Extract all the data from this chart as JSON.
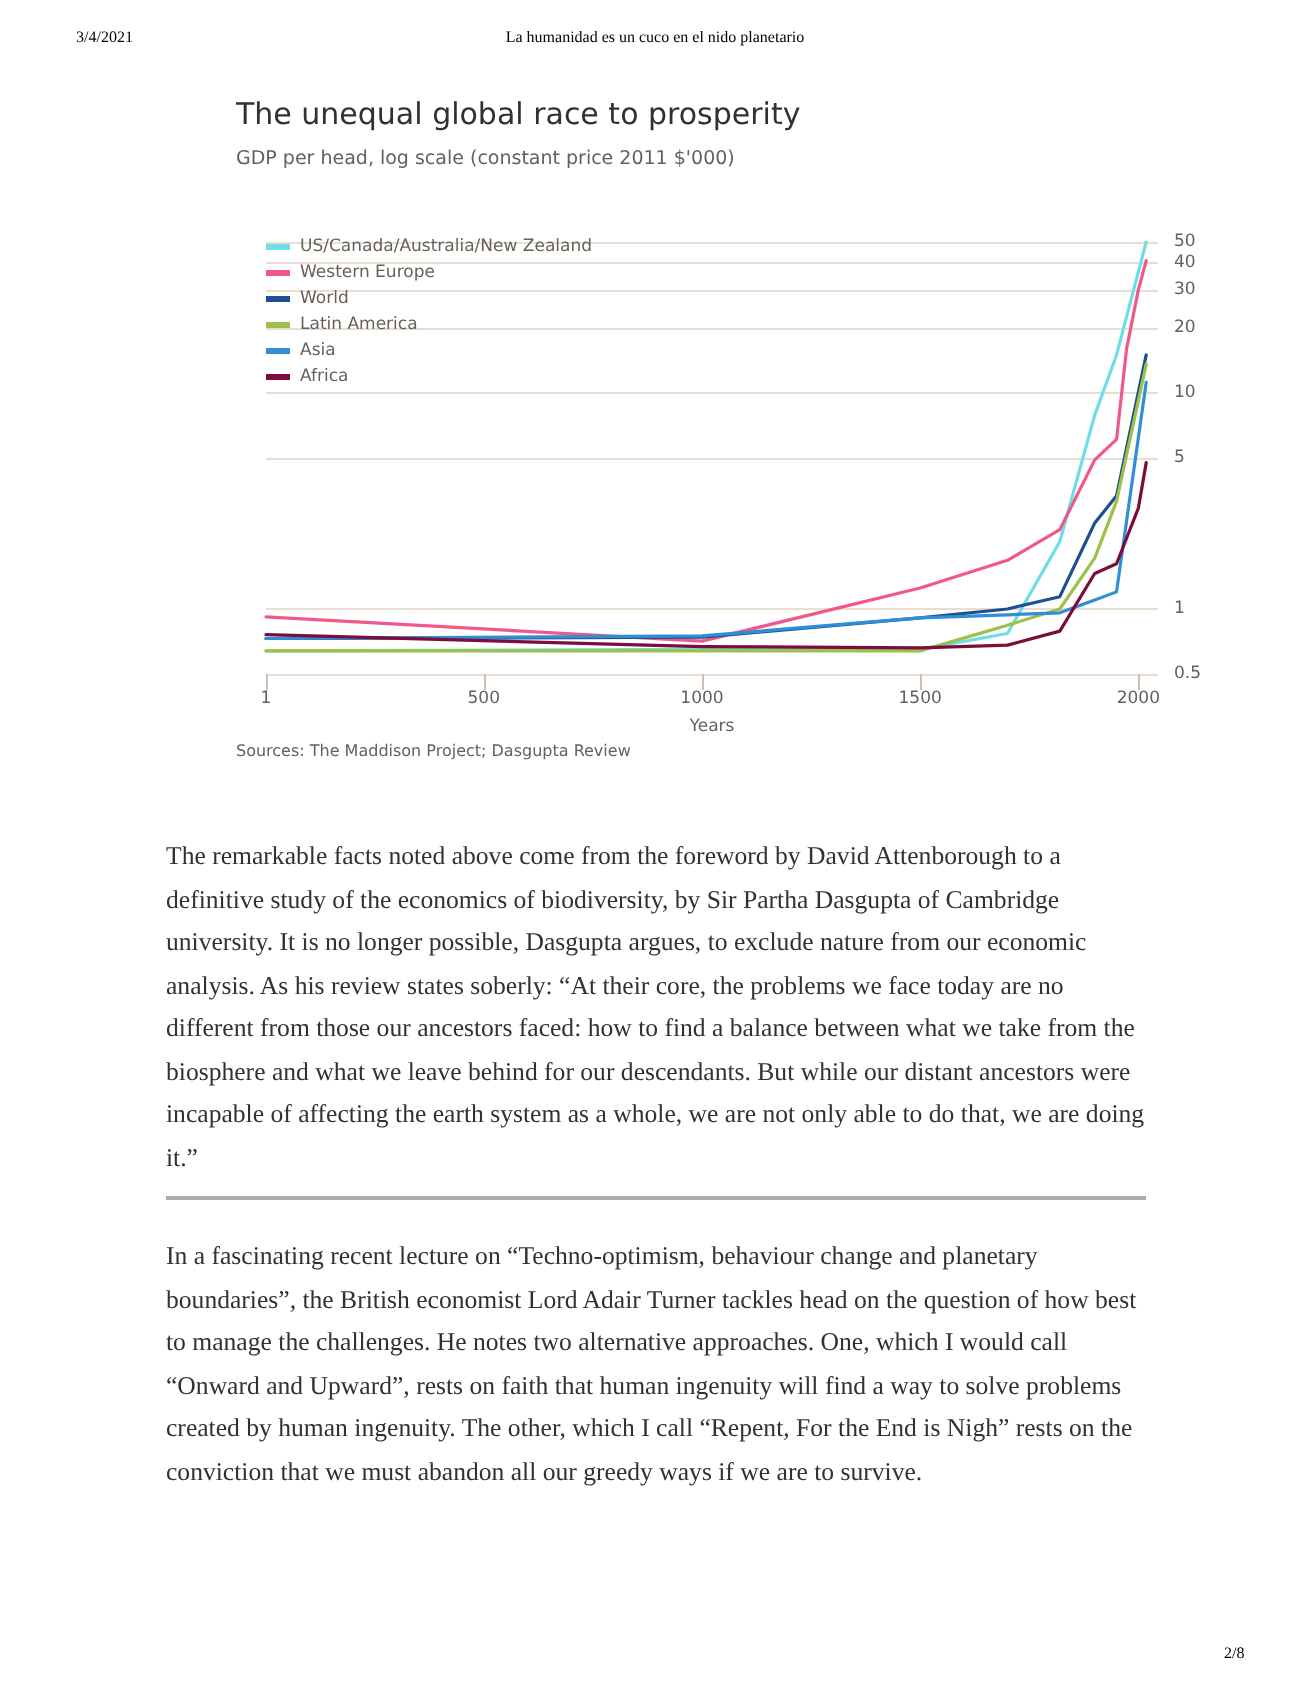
{
  "chart_data": {
    "type": "line",
    "title": "The unequal global race to prosperity",
    "subtitle": "GDP per head, log scale (constant price 2011 $'000)",
    "xlabel": "Years",
    "xlim": [
      1,
      2045
    ],
    "xticks": [
      1,
      500,
      1000,
      1500,
      2000
    ],
    "ylim": [
      0.5,
      50
    ],
    "yticks": [
      0.5,
      1,
      5,
      10,
      20,
      30,
      40,
      50
    ],
    "log": "y",
    "grid": "y",
    "legend": "top left",
    "marker": "none",
    "line_style": "solid",
    "series": [
      {
        "name": "US/Canada/Australia/New Zealand",
        "color": "#6fdde6",
        "x": [
          1,
          1000,
          1500,
          1700,
          1820,
          1900,
          1950,
          2018
        ],
        "values": [
          0.64,
          0.65,
          0.65,
          0.77,
          2.05,
          7.9,
          15,
          50
        ]
      },
      {
        "name": "Western Europe",
        "color": "#f0588a",
        "x": [
          1,
          1000,
          1500,
          1700,
          1820,
          1900,
          1950,
          1973,
          2000,
          2018
        ],
        "values": [
          0.92,
          0.71,
          1.25,
          1.68,
          2.33,
          4.9,
          6.1,
          16,
          30,
          41
        ]
      },
      {
        "name": "World",
        "color": "#1d4f91",
        "x": [
          1,
          1000,
          1500,
          1700,
          1820,
          1900,
          1950,
          2018
        ],
        "values": [
          0.73,
          0.74,
          0.91,
          1.0,
          1.14,
          2.5,
          3.34,
          15
        ]
      },
      {
        "name": "Latin America",
        "color": "#9cc14a",
        "x": [
          1,
          1000,
          1500,
          1700,
          1820,
          1900,
          1950,
          2018
        ],
        "values": [
          0.64,
          0.64,
          0.64,
          0.84,
          1.0,
          1.72,
          3.15,
          13.6
        ]
      },
      {
        "name": "Asia",
        "color": "#2f8fd6",
        "x": [
          1,
          1000,
          1500,
          1700,
          1820,
          1900,
          1950,
          2018
        ],
        "values": [
          0.73,
          0.75,
          0.91,
          0.94,
          0.96,
          1.1,
          1.2,
          11.2
        ]
      },
      {
        "name": "Africa",
        "color": "#7d0c3c",
        "x": [
          1,
          1000,
          1500,
          1700,
          1820,
          1900,
          1950,
          2000,
          2018
        ],
        "values": [
          0.76,
          0.67,
          0.66,
          0.68,
          0.79,
          1.46,
          1.62,
          2.93,
          4.76
        ]
      }
    ],
    "annotations": [
      "3/4/2021",
      "La humanidad es un cuco en el nido planetario",
      "Sources: The Maddison Project; Dasgupta Review",
      "The remarkable facts noted above come from the foreword by David Attenborough to a definitive study of the economics of biodiversity, by Sir Partha Dasgupta of Cambridge university. It is no longer possible, Dasgupta argues, to exclude nature from our economic analysis. As his review states soberly: “At their core, the problems we face today are no different from those our ancestors faced: how to find a balance between what we take from the biosphere and what we leave behind for our descendants. But while our distant ancestors were incapable of affecting the earth system as a whole, we are not only able to do that, we are doing it.”",
      "In a fascinating recent lecture on “Techno-optimism, behaviour change and planetary boundaries”, the British economist Lord Adair Turner tackles head on the question of how best to manage the challenges. He notes two alternative approaches. One, which I would call “Onward and Upward”, rests on faith that human ingenuity will find a way to solve problems created by human ingenuity. The other, which I call “Repent, For the End is Nigh” rests on the conviction that we must abandon all our greedy ways if we are to survive.",
      "2/8"
    ]
  }
}
